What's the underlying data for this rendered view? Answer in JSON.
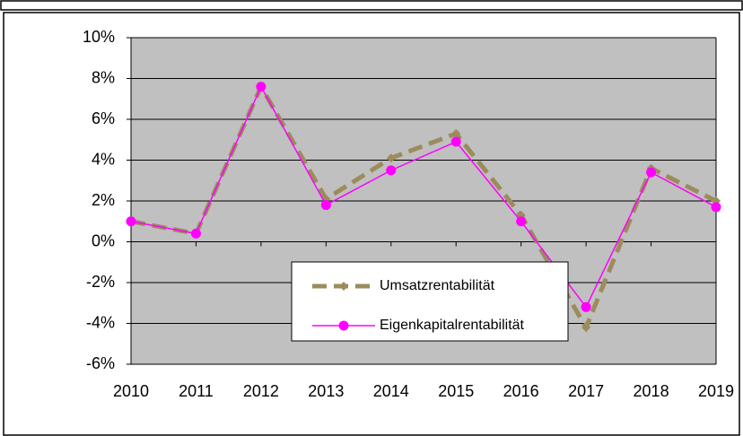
{
  "chart_data": {
    "type": "line",
    "categories": [
      "2010",
      "2011",
      "2012",
      "2013",
      "2014",
      "2015",
      "2016",
      "2017",
      "2018",
      "2019"
    ],
    "series": [
      {
        "name": "Umsatzrentabilität",
        "color": "#9c8c5c",
        "values": [
          1.0,
          0.4,
          7.6,
          2.1,
          4.1,
          5.3,
          1.3,
          -4.2,
          3.6,
          2.0
        ]
      },
      {
        "name": "Eigenkapitalrentabilität",
        "color": "#ff00ff",
        "values": [
          1.0,
          0.4,
          7.6,
          1.8,
          3.5,
          4.9,
          1.0,
          -3.2,
          3.4,
          1.7
        ]
      }
    ],
    "ylim": [
      -6,
      10
    ],
    "yticks": [
      {
        "value": -6,
        "label": "-6%"
      },
      {
        "value": -4,
        "label": "-4%"
      },
      {
        "value": -2,
        "label": "-2%"
      },
      {
        "value": 0,
        "label": "0%"
      },
      {
        "value": 2,
        "label": "2%"
      },
      {
        "value": 4,
        "label": "4%"
      },
      {
        "value": 6,
        "label": "6%"
      },
      {
        "value": 8,
        "label": "8%"
      },
      {
        "value": 10,
        "label": "10%"
      }
    ],
    "grid": true,
    "legend": "lower center"
  }
}
